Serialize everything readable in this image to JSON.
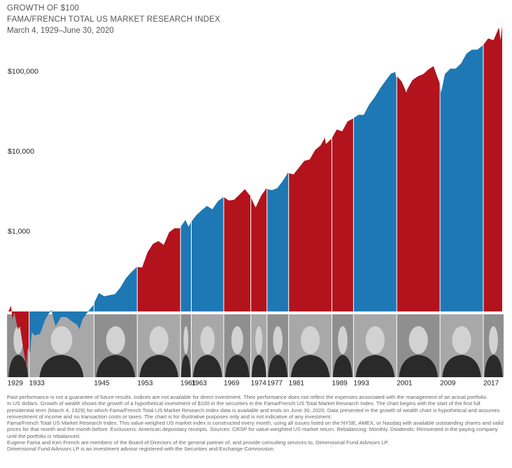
{
  "title": "GROWTH OF $100",
  "subtitle": "FAMA/FRENCH TOTAL US MARKET RESEARCH INDEX",
  "period": "March 4, 1929–June 30, 2020",
  "chart_data": {
    "type": "area",
    "log_scale": true,
    "x": [
      1929.17,
      1929.67,
      1929.9,
      1930.3,
      1930.9,
      1931.3,
      1931.9,
      1932.5,
      1932.7,
      1933.17,
      1933.5,
      1934,
      1935,
      1936,
      1937.1,
      1937.9,
      1938.9,
      1939.9,
      1940.9,
      1941.9,
      1942.3,
      1942.9,
      1943.9,
      1944.9,
      1945.3,
      1945.9,
      1946.9,
      1947.9,
      1948.9,
      1949.9,
      1950.9,
      1951.9,
      1952.9,
      1953.08,
      1953.9,
      1954.9,
      1955.9,
      1956.9,
      1957.9,
      1958.9,
      1959.9,
      1960.9,
      1961.05,
      1961.9,
      1962.5,
      1962.9,
      1963.9,
      1964.9,
      1965.9,
      1966.9,
      1967.9,
      1968.9,
      1969.05,
      1969.9,
      1970.9,
      1971.9,
      1972.9,
      1973.9,
      1974.6,
      1974.9,
      1975.9,
      1976.9,
      1977.05,
      1977.9,
      1978.9,
      1979.9,
      1980.9,
      1981.05,
      1981.9,
      1982.9,
      1983.9,
      1984.9,
      1985.9,
      1986.9,
      1987.7,
      1987.9,
      1988.9,
      1989.05,
      1989.9,
      1990.9,
      1991.9,
      1992.9,
      1993.05,
      1993.9,
      1994.9,
      1995.9,
      1996.9,
      1997.9,
      1998.9,
      1999.9,
      2000.7,
      2000.9,
      2001.05,
      2001.9,
      2002.8,
      2002.9,
      2003.9,
      2004.9,
      2005.9,
      2006.9,
      2007.8,
      2008.9,
      2009.05,
      2009.2,
      2009.9,
      2010.9,
      2011.9,
      2012.9,
      2013.9,
      2014.9,
      2015.9,
      2016.9,
      2017.05,
      2017.9,
      2018.9,
      2019.9,
      2020.2,
      2020.5
    ],
    "values": [
      100,
      118,
      80,
      95,
      60,
      65,
      35,
      20,
      35,
      30,
      55,
      50,
      52,
      80,
      105,
      65,
      85,
      85,
      75,
      68,
      60,
      80,
      100,
      120,
      140,
      170,
      155,
      160,
      165,
      200,
      260,
      310,
      360,
      360,
      355,
      550,
      700,
      760,
      680,
      980,
      1100,
      1100,
      1150,
      1400,
      1150,
      1300,
      1600,
      1850,
      2100,
      1900,
      2400,
      2700,
      2700,
      2450,
      2500,
      2900,
      3400,
      2800,
      2200,
      2000,
      2800,
      3500,
      3400,
      3300,
      3500,
      4300,
      5500,
      5400,
      5200,
      6300,
      7700,
      8000,
      10500,
      12000,
      15000,
      12500,
      14500,
      15000,
      19000,
      18000,
      24000,
      26000,
      26500,
      29000,
      29000,
      39000,
      48000,
      62000,
      77000,
      95000,
      100000,
      85000,
      88000,
      76000,
      55000,
      60000,
      79000,
      88000,
      94000,
      108000,
      118000,
      73000,
      70000,
      55000,
      94000,
      110000,
      110000,
      128000,
      170000,
      190000,
      190000,
      215000,
      220000,
      262000,
      250000,
      360000,
      250000,
      380000
    ],
    "xlim": [
      1929.17,
      2020.5
    ],
    "ylim": [
      15,
      600000
    ],
    "xticks": [
      1929,
      1933,
      1945,
      1953,
      1961,
      1963,
      1969,
      1974,
      1977,
      1981,
      1989,
      1993,
      2001,
      2009,
      2017
    ],
    "term_colors": [
      "#b3131c",
      "#1e78b4",
      "#1e78b4",
      "#b3131c",
      "#1e78b4",
      "#1e78b4",
      "#b3131c",
      "#b3131c",
      "#1e78b4",
      "#b3131c",
      "#b3131c",
      "#1e78b4",
      "#b3131c",
      "#1e78b4",
      "#b3131c"
    ],
    "yticks": [
      {
        "value": 1000,
        "label": "$1,000"
      },
      {
        "value": 10000,
        "label": "$10,000"
      },
      {
        "value": 100000,
        "label": "$100,000"
      }
    ],
    "grid": false
  },
  "notes": [
    "Past performance is not a guarantee of future results. Indices are not available for direct investment. Their performance does not reflect the expenses associated with the management of an actual portfolio.",
    "In US dollars. Growth of wealth shows the growth of a hypothetical investment of $100 in the securities in the Fama/French US Total Market Research Index. The chart begins with the start of the first full presidential term (March 4, 1929) for which Fama/French Total US Market Research Index data is available and ends on June 30, 2020. Data presented in the growth of wealth chart is hypothetical and assumes reinvestment of income and no transaction costs or taxes. The chart is for illustrative purposes only and is not indicative of any investment.",
    "Fama/French Total US Market Research Index: This value-weighed US market index is constructed every month, using all issues listed on the NYSE, AMEX, or Nasdaq with available outstanding shares and valid prices for that month and the month before. Exclusions: American depositary receipts. Sources: CRSP for value-weighted US market return. Rebalancing: Monthly. Dividends: Reinvested in the paying company until the portfolio is rebalanced.",
    "Eugene Fama and Ken French are members of the Board of Directors of the general partner of, and provide consulting services to, Dimensional Fund Advisors LP.",
    "Dimensional Fund Advisors LP is an investment advisor registered with the Securities and Exchange Commission."
  ]
}
